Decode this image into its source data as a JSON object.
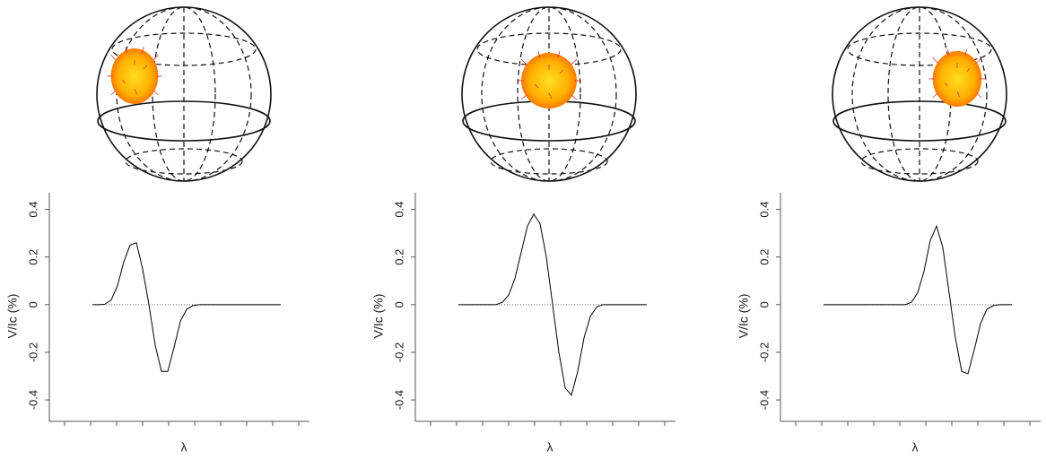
{
  "chart_data": [
    {
      "type": "line",
      "ylabel": "V/Ic (%)",
      "xlabel": "λ",
      "color": "#000000",
      "values": [
        0,
        0,
        0.002,
        0.02,
        0.08,
        0.18,
        0.25,
        0.26,
        0.15,
        0,
        -0.17,
        -0.28,
        -0.28,
        -0.18,
        -0.07,
        -0.02,
        -0.004,
        0,
        0,
        0,
        0,
        0,
        0,
        0,
        0,
        0,
        0,
        0,
        0,
        0,
        0
      ],
      "ylim": [
        -0.49,
        0.47
      ],
      "yticks": [
        -0.4,
        -0.2,
        0,
        0.2,
        0.4
      ]
    },
    {
      "type": "line",
      "ylabel": "V/Ic (%)",
      "xlabel": "λ",
      "color": "#000000",
      "values": [
        0,
        0,
        0,
        0,
        0,
        0,
        0,
        0.01,
        0.04,
        0.11,
        0.22,
        0.33,
        0.38,
        0.34,
        0.2,
        0,
        -0.2,
        -0.35,
        -0.38,
        -0.28,
        -0.14,
        -0.05,
        -0.01,
        0,
        0,
        0,
        0,
        0,
        0,
        0,
        0
      ],
      "ylim": [
        -0.49,
        0.47
      ],
      "yticks": [
        -0.4,
        -0.2,
        0,
        0.2,
        0.4
      ]
    },
    {
      "type": "line",
      "ylabel": "V/Ic (%)",
      "xlabel": "λ",
      "color": "#000000",
      "values": [
        0,
        0,
        0,
        0,
        0,
        0,
        0,
        0,
        0,
        0,
        0,
        0,
        0,
        0,
        0.01,
        0.05,
        0.14,
        0.27,
        0.33,
        0.24,
        0.05,
        -0.14,
        -0.28,
        -0.29,
        -0.19,
        -0.08,
        -0.02,
        -0.004,
        0,
        0,
        0
      ],
      "ylim": [
        -0.49,
        0.47
      ],
      "yticks": [
        -0.4,
        -0.2,
        0,
        0.2,
        0.4
      ]
    }
  ]
}
